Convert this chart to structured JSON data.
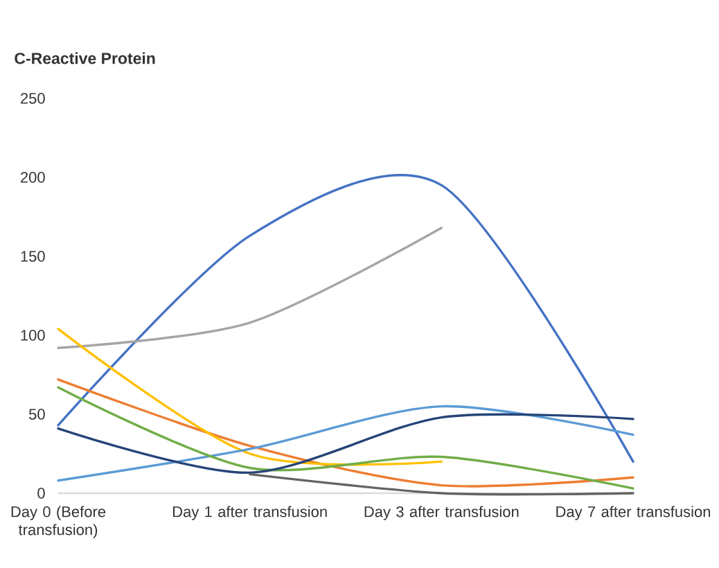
{
  "chart_data": {
    "type": "line",
    "title": "C-Reactive Protein",
    "categories": [
      "Day 0 (Before transfusion)",
      "Day 1 after transfusion",
      "Day 3 after transfusion",
      "Day 7 after transfusion"
    ],
    "series": [
      {
        "color": "#4472c4",
        "values": [
          43,
          163,
          195,
          20
        ]
      },
      {
        "color": "#ed7d31",
        "values": [
          72,
          30,
          5,
          10
        ]
      },
      {
        "color": "#a5a5a5",
        "values": [
          92,
          108,
          168,
          null
        ]
      },
      {
        "color": "#ffc000",
        "values": [
          104,
          25,
          20,
          null
        ]
      },
      {
        "color": "#5b9bd5",
        "values": [
          8,
          28,
          55,
          37
        ]
      },
      {
        "color": "#70ad47",
        "values": [
          67,
          16,
          23,
          3
        ]
      },
      {
        "color": "#264478",
        "values": [
          41,
          13,
          48,
          47
        ]
      },
      {
        "color": "#636363",
        "values": [
          null,
          12,
          0,
          0
        ]
      }
    ],
    "ylim": [
      0,
      250
    ],
    "yticks": [
      0,
      50,
      100,
      150,
      200,
      250
    ],
    "line_style": "solid"
  }
}
